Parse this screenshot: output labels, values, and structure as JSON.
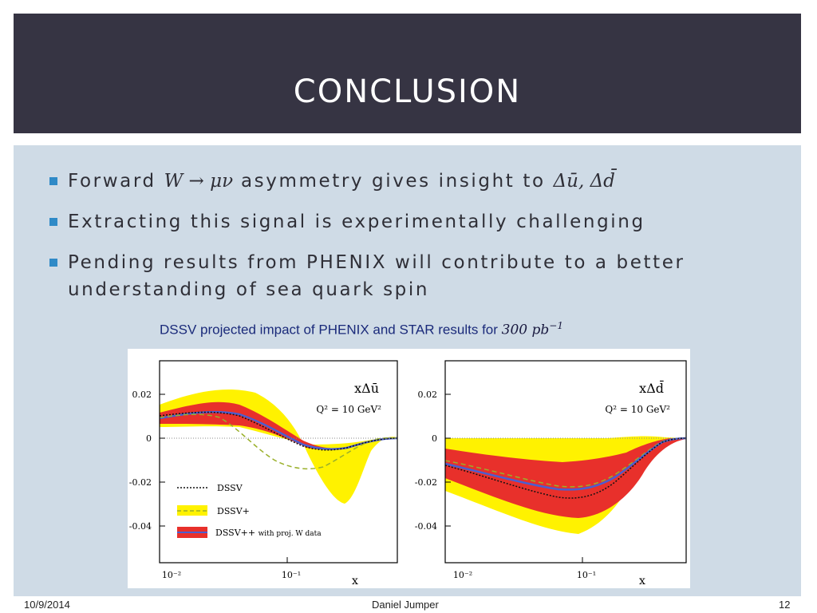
{
  "slide": {
    "title": "CONCLUSION",
    "bullets": [
      {
        "pre": "Forward ",
        "math": "W → μν",
        "post": " asymmetry gives insight to ",
        "math2": "Δū, Δd̄"
      },
      {
        "text": "Extracting this signal is experimentally challenging"
      },
      {
        "text1": "Pending results from PHENIX will contribute to a better",
        "text2": "understanding of sea quark spin"
      }
    ],
    "caption": {
      "text": "DSSV projected impact of PHENIX and STAR results for ",
      "math": "300 pb",
      "sup": "−1"
    },
    "footer": {
      "date": "10/9/2014",
      "author": "Daniel Jumper",
      "page": "12"
    }
  },
  "figure": {
    "panels": [
      {
        "label": "xΔū",
        "q2": "Q² = 10 GeV²",
        "yticks": [
          "0.02",
          "0",
          "-0.02",
          "-0.04"
        ],
        "xticks": [
          "10⁻²",
          "10⁻¹"
        ],
        "xlabel": "x"
      },
      {
        "label": "xΔd̄",
        "q2": "Q² = 10 GeV²",
        "yticks": [
          "0.02",
          "0",
          "-0.02",
          "-0.04"
        ],
        "xticks": [
          "10⁻²",
          "10⁻¹"
        ],
        "xlabel": "x"
      }
    ],
    "legend": [
      {
        "name": "DSSV",
        "style": "dotted-black"
      },
      {
        "name": "DSSV+",
        "style": "dashed-olive"
      },
      {
        "name": "DSSV++",
        "note": "with proj. W data",
        "style": "red-band-blue-line"
      }
    ],
    "colors": {
      "yellow_band": "#fff200",
      "red_band": "#e8302b",
      "blue_line": "#4a5fd0",
      "dashed_line": "#9ab02a",
      "black": "#111111"
    }
  }
}
